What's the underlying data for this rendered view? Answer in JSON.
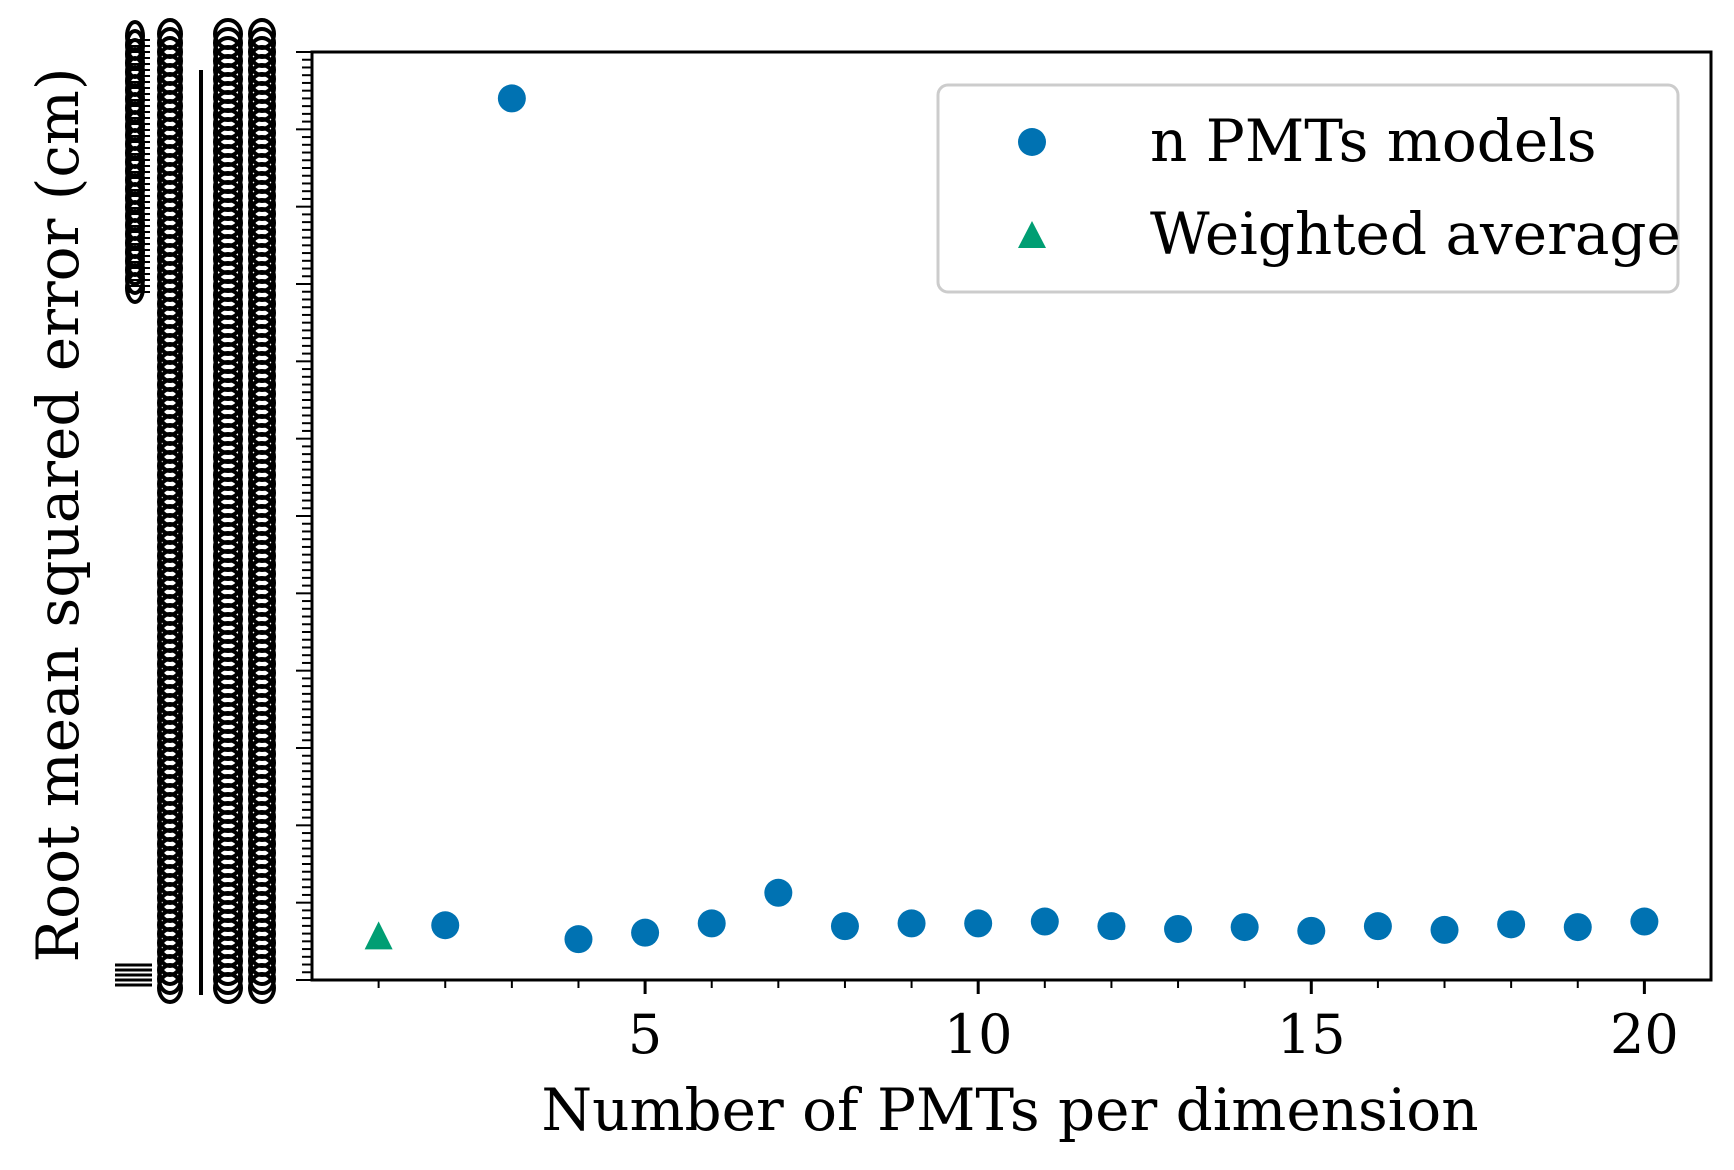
{
  "chart_data": {
    "type": "scatter",
    "xlabel": "Number of PMTs per dimension",
    "ylabel": "Root mean squared error (cm)",
    "xlim": [
      0.0,
      21.0
    ],
    "ylim": [
      0.0,
      1.0
    ],
    "x_ticks": [
      5,
      10,
      15,
      20
    ],
    "x_tick_labels": [
      "5",
      "10",
      "15",
      "20"
    ],
    "y_tick_labels_note": "overlapping illegible tick labels",
    "grid": false,
    "legend_position": "top-right",
    "series": [
      {
        "name": "n PMTs models",
        "marker": "circle",
        "color": "#0072b2",
        "points": [
          {
            "x": 2,
            "y": 0.059
          },
          {
            "x": 3,
            "y": 0.95
          },
          {
            "x": 4,
            "y": 0.044
          },
          {
            "x": 5,
            "y": 0.051
          },
          {
            "x": 6,
            "y": 0.061
          },
          {
            "x": 7,
            "y": 0.094
          },
          {
            "x": 8,
            "y": 0.058
          },
          {
            "x": 9,
            "y": 0.061
          },
          {
            "x": 10,
            "y": 0.061
          },
          {
            "x": 11,
            "y": 0.063
          },
          {
            "x": 12,
            "y": 0.058
          },
          {
            "x": 13,
            "y": 0.055
          },
          {
            "x": 14,
            "y": 0.057
          },
          {
            "x": 15,
            "y": 0.053
          },
          {
            "x": 16,
            "y": 0.058
          },
          {
            "x": 17,
            "y": 0.054
          },
          {
            "x": 18,
            "y": 0.06
          },
          {
            "x": 19,
            "y": 0.057
          },
          {
            "x": 20,
            "y": 0.063
          }
        ]
      },
      {
        "name": "Weighted average",
        "marker": "triangle",
        "color": "#009e73",
        "points": [
          {
            "x": 1,
            "y": 0.047
          }
        ]
      }
    ]
  }
}
